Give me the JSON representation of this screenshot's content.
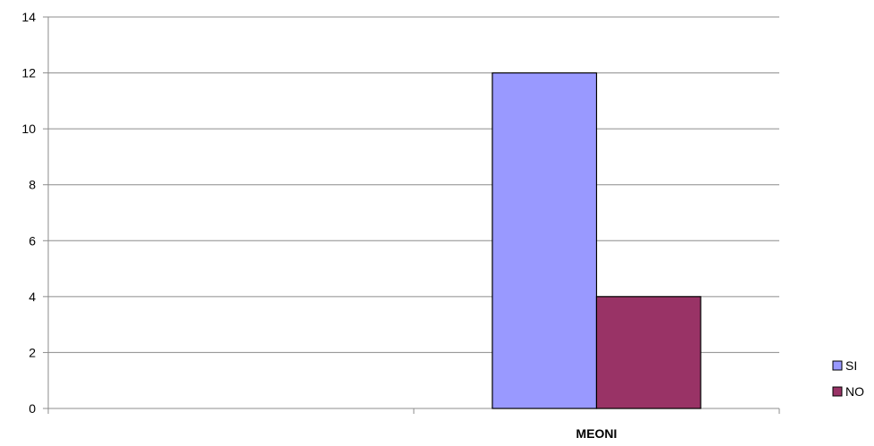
{
  "chart_data": {
    "type": "bar",
    "categories": [
      "",
      "MEONI"
    ],
    "series": [
      {
        "name": "SI",
        "values": [
          null,
          12
        ],
        "color": "#9999ff"
      },
      {
        "name": "NO",
        "values": [
          null,
          4
        ],
        "color": "#993366"
      }
    ],
    "ylim": [
      0,
      14
    ],
    "yticks": [
      0,
      2,
      4,
      6,
      8,
      10,
      12,
      14
    ],
    "grid": true,
    "legend_position": "right"
  }
}
